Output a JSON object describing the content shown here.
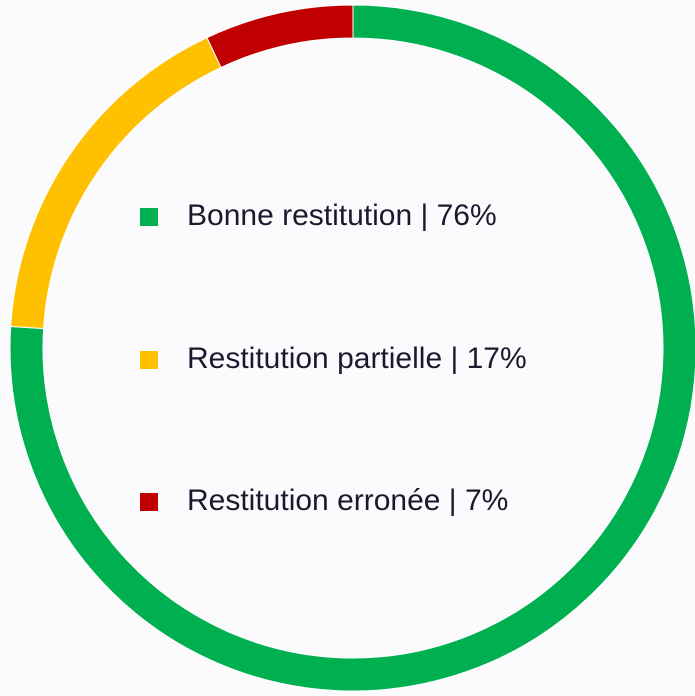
{
  "chart_data": {
    "type": "donut",
    "labels": [
      "Bonne restitution | 76%",
      "Restitution partielle | 17%",
      "Restitution erronée | 7%"
    ],
    "values": [
      76,
      17,
      7
    ],
    "colors": [
      "#00b050",
      "#ffc000",
      "#c00000"
    ]
  }
}
